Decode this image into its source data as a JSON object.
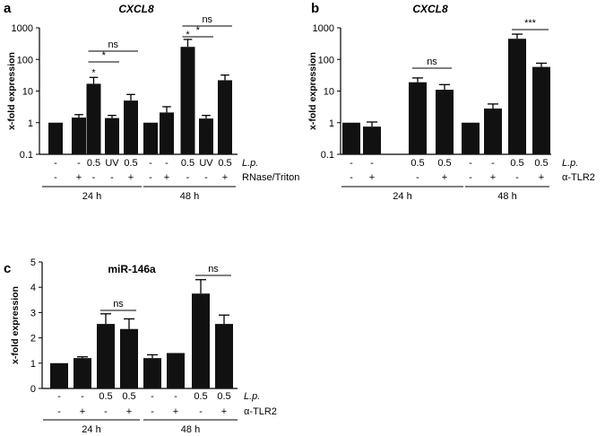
{
  "chart_data": [
    {
      "panel": "a",
      "type": "bar",
      "title": "CXCL8",
      "ylabel": "x-fold expression",
      "yscale": "log",
      "ylim": [
        0.1,
        1000
      ],
      "yticks": [
        0.1,
        1,
        10,
        100,
        1000
      ],
      "ytick_labels": [
        "0.1",
        "1",
        "10",
        "100",
        "1000"
      ],
      "row_labels": [
        "L.p.",
        "RNase/Triton"
      ],
      "groups": [
        {
          "label": "24 h",
          "bars": [
            {
              "value": 1.0,
              "err": 0.0,
              "row1": "-",
              "row2": "-"
            },
            {
              "value": 1.45,
              "err": 0.35,
              "row1": "-",
              "row2": "+"
            },
            {
              "value": 17,
              "err": 10,
              "row1": "0.5",
              "row2": "-",
              "star": "*"
            },
            {
              "value": 1.4,
              "err": 0.3,
              "row1": "UV",
              "row2": "-"
            },
            {
              "value": 5,
              "err": 2.8,
              "row1": "0.5",
              "row2": "+"
            }
          ]
        },
        {
          "label": "48 h",
          "bars": [
            {
              "value": 1.0,
              "err": 0.0,
              "row1": "-",
              "row2": "-"
            },
            {
              "value": 2.1,
              "err": 1.1,
              "row1": "-",
              "row2": "+"
            },
            {
              "value": 250,
              "err": 180,
              "row1": "0.5",
              "row2": "-",
              "star": "*"
            },
            {
              "value": 1.35,
              "err": 0.35,
              "row1": "UV",
              "row2": "-"
            },
            {
              "value": 22,
              "err": 10,
              "row1": "0.5",
              "row2": "+"
            }
          ]
        }
      ],
      "comparisons": [
        {
          "from": [
            0,
            2
          ],
          "to": [
            0,
            3
          ],
          "label": "*"
        },
        {
          "from": [
            0,
            2
          ],
          "to": [
            0,
            4
          ],
          "label": "ns"
        },
        {
          "from": [
            1,
            2
          ],
          "to": [
            1,
            3
          ],
          "label": "*"
        },
        {
          "from": [
            1,
            2
          ],
          "to": [
            1,
            4
          ],
          "label": "ns"
        }
      ]
    },
    {
      "panel": "b",
      "type": "bar",
      "title": "CXCL8",
      "ylabel": "x-fold expression",
      "yscale": "log",
      "ylim": [
        0.1,
        1000
      ],
      "yticks": [
        0.1,
        1,
        10,
        100,
        1000
      ],
      "ytick_labels": [
        "0.1",
        "1",
        "10",
        "100",
        "1000"
      ],
      "row_labels": [
        "L.p.",
        "α-TLR2"
      ],
      "groups": [
        {
          "label": "24 h",
          "bars": [
            {
              "value": 1.0,
              "err": 0.0,
              "row1": "-",
              "row2": "-"
            },
            {
              "value": 0.75,
              "err": 0.3,
              "row1": "-",
              "row2": "+"
            },
            {
              "value": 19,
              "err": 7,
              "row1": "0.5",
              "row2": "-"
            },
            {
              "value": 11,
              "err": 5,
              "row1": "0.5",
              "row2": "+"
            }
          ]
        },
        {
          "label": "48 h",
          "bars": [
            {
              "value": 1.0,
              "err": 0.0,
              "row1": "-",
              "row2": "-"
            },
            {
              "value": 2.8,
              "err": 1.1,
              "row1": "-",
              "row2": "+"
            },
            {
              "value": 450,
              "err": 180,
              "row1": "0.5",
              "row2": "-"
            },
            {
              "value": 58,
              "err": 18,
              "row1": "0.5",
              "row2": "+"
            }
          ]
        }
      ],
      "comparisons": [
        {
          "from": [
            0,
            2
          ],
          "to": [
            0,
            3
          ],
          "label": "ns"
        },
        {
          "from": [
            1,
            2
          ],
          "to": [
            1,
            3
          ],
          "label": "***"
        }
      ]
    },
    {
      "panel": "c",
      "type": "bar",
      "title": "miR-146a",
      "ylabel": "x-fold expression",
      "yscale": "linear",
      "ylim": [
        0,
        5
      ],
      "yticks": [
        0,
        1,
        2,
        3,
        4,
        5
      ],
      "ytick_labels": [
        "0",
        "1",
        "2",
        "3",
        "4",
        "5"
      ],
      "row_labels": [
        "L.p.",
        "α-TLR2"
      ],
      "groups": [
        {
          "label": "24 h",
          "bars": [
            {
              "value": 1.0,
              "err": 0.0,
              "row1": "-",
              "row2": "-"
            },
            {
              "value": 1.2,
              "err": 0.05,
              "row1": "-",
              "row2": "+"
            },
            {
              "value": 2.55,
              "err": 0.4,
              "row1": "0.5",
              "row2": "-"
            },
            {
              "value": 2.35,
              "err": 0.4,
              "row1": "0.5",
              "row2": "+"
            }
          ]
        },
        {
          "label": "48 h",
          "bars": [
            {
              "value": 1.2,
              "err": 0.13,
              "row1": "-",
              "row2": "-"
            },
            {
              "value": 1.4,
              "err": 0.0,
              "row1": "-",
              "row2": "+"
            },
            {
              "value": 3.75,
              "err": 0.55,
              "row1": "0.5",
              "row2": "-"
            },
            {
              "value": 2.55,
              "err": 0.35,
              "row1": "0.5",
              "row2": "+"
            }
          ]
        }
      ],
      "comparisons": [
        {
          "from": [
            0,
            2
          ],
          "to": [
            0,
            3
          ],
          "label": "ns"
        },
        {
          "from": [
            1,
            2
          ],
          "to": [
            1,
            3
          ],
          "label": "ns"
        }
      ]
    }
  ]
}
